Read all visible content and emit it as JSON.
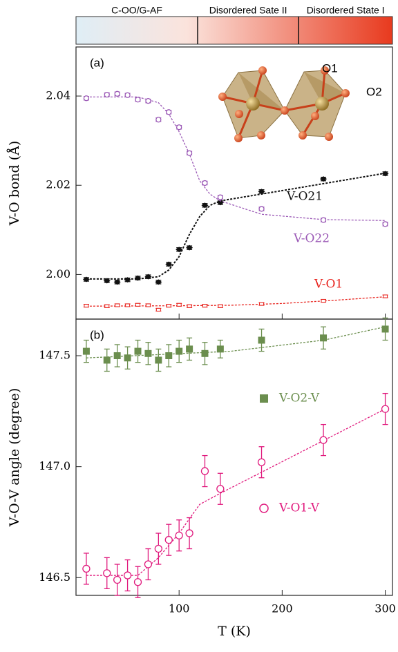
{
  "phase_bar": {
    "labels": [
      "C-OO/G-AF",
      "Disordered Sate II",
      "Disordered State I"
    ],
    "boundaries": [
      118,
      216
    ]
  },
  "inset": {
    "labels": [
      "O1",
      "O2"
    ]
  },
  "chart_data": [
    {
      "type": "scatter",
      "panel_label": "(a)",
      "y_label": "V-O bond (Å)",
      "xlim": [
        0,
        307
      ],
      "ylim": [
        1.99,
        2.051
      ],
      "xticks": [
        100,
        200,
        300
      ],
      "yticks": [
        {
          "value": 2,
          "label": "2.00"
        },
        2.02,
        2.04
      ],
      "series": [
        {
          "name": "V-O21",
          "color": "#111111",
          "marker": "diamond",
          "x": [
            10,
            30,
            40,
            50,
            60,
            70,
            80,
            90,
            100,
            110,
            125,
            140,
            180,
            240,
            300
          ],
          "values": [
            1.9989,
            1.9986,
            1.9983,
            1.9988,
            1.9992,
            1.9995,
            1.9983,
            2.0023,
            2.0056,
            2.006,
            2.0155,
            2.0161,
            2.0186,
            2.0214,
            2.0226
          ],
          "errors": [
            0.0004,
            0.0004,
            0.0004,
            0.0004,
            0.0004,
            0.0004,
            0.0004,
            0.0004,
            0.0004,
            0.0004,
            0.0004,
            0.0004,
            0.0004,
            0.0004,
            0.0004
          ],
          "fit": {
            "x": [
              10,
              60,
              80,
              90,
              100,
              110,
              120,
              130,
              140,
              200,
              300
            ],
            "values": [
              1.999,
              1.999,
              1.9995,
              2.001,
              2.004,
              2.009,
              2.013,
              2.0155,
              2.0165,
              2.0188,
              2.0227
            ]
          }
        },
        {
          "name": "V-O22",
          "color": "#9b59b6",
          "marker": "circle",
          "x": [
            10,
            30,
            40,
            50,
            60,
            70,
            80,
            90,
            100,
            110,
            125,
            140,
            180,
            240,
            300
          ],
          "values": [
            2.0395,
            2.0403,
            2.0405,
            2.0402,
            2.0392,
            2.0389,
            2.0347,
            2.0364,
            2.033,
            2.0272,
            2.0205,
            2.0173,
            2.0147,
            2.0122,
            2.0113
          ],
          "errors": [
            0.0004,
            0.0004,
            0.0004,
            0.0004,
            0.0004,
            0.0004,
            0.0004,
            0.0004,
            0.0004,
            0.0004,
            0.0004,
            0.0004,
            0.0004,
            0.0004,
            0.0004
          ],
          "fit": {
            "x": [
              10,
              60,
              80,
              90,
              100,
              110,
              120,
              130,
              140,
              180,
              240,
              300
            ],
            "values": [
              2.0398,
              2.0398,
              2.0385,
              2.036,
              2.032,
              2.027,
              2.021,
              2.018,
              2.0165,
              2.0135,
              2.0123,
              2.0121
            ]
          }
        },
        {
          "name": "V-O1",
          "color": "#e8251f",
          "marker": "square-open",
          "x": [
            10,
            30,
            40,
            50,
            60,
            70,
            80,
            90,
            100,
            110,
            125,
            140,
            180,
            240,
            300
          ],
          "values": [
            1.993,
            1.9929,
            1.9931,
            1.9931,
            1.9932,
            1.9931,
            1.9921,
            1.993,
            1.9932,
            1.9929,
            1.993,
            1.9929,
            1.9934,
            1.9941,
            1.9951
          ],
          "errors": [
            0.0003,
            0.0003,
            0.0003,
            0.0003,
            0.0003,
            0.0003,
            0.0003,
            0.0003,
            0.0003,
            0.0003,
            0.0003,
            0.0003,
            0.0003,
            0.0003,
            0.0003
          ],
          "fit": {
            "x": [
              10,
              100,
              150,
              200,
              250,
              300
            ],
            "values": [
              1.9929,
              1.993,
              1.9931,
              1.9935,
              1.9942,
              1.995
            ]
          }
        }
      ]
    },
    {
      "type": "scatter",
      "panel_label": "(b)",
      "y_label": "V-O-V angle (degree)",
      "x_label": "T (K)",
      "xlim": [
        0,
        307
      ],
      "ylim": [
        146.42,
        147.665
      ],
      "xticks": [
        100,
        200,
        300
      ],
      "yticks": [
        146.5,
        {
          "value": 147,
          "label": "147.0"
        },
        147.5
      ],
      "series": [
        {
          "name": "V-O2-V",
          "color": "#6b8e4e",
          "marker": "square",
          "x": [
            10,
            30,
            40,
            50,
            60,
            70,
            80,
            90,
            100,
            110,
            125,
            140,
            180,
            240,
            300
          ],
          "values": [
            147.52,
            147.48,
            147.5,
            147.49,
            147.52,
            147.51,
            147.48,
            147.5,
            147.52,
            147.53,
            147.51,
            147.53,
            147.57,
            147.58,
            147.62
          ],
          "errors": [
            0.05,
            0.05,
            0.05,
            0.05,
            0.05,
            0.05,
            0.05,
            0.05,
            0.05,
            0.05,
            0.05,
            0.04,
            0.05,
            0.05,
            0.05
          ],
          "fit": {
            "x": [
              10,
              150,
              240,
              300
            ],
            "values": [
              147.49,
              147.52,
              147.57,
              147.63
            ]
          }
        },
        {
          "name": "V-O1-V",
          "color": "#e0197d",
          "marker": "circle",
          "x": [
            10,
            30,
            40,
            50,
            60,
            70,
            80,
            90,
            100,
            110,
            125,
            140,
            180,
            240,
            300
          ],
          "values": [
            146.54,
            146.52,
            146.49,
            146.51,
            146.48,
            146.56,
            146.63,
            146.67,
            146.69,
            146.7,
            146.98,
            146.9,
            147.02,
            147.12,
            147.26
          ],
          "errors": [
            0.07,
            0.07,
            0.07,
            0.07,
            0.07,
            0.07,
            0.07,
            0.07,
            0.07,
            0.07,
            0.07,
            0.07,
            0.07,
            0.07,
            0.07
          ],
          "fit": {
            "x": [
              10,
              60,
              80,
              100,
              120,
              140,
              300
            ],
            "values": [
              146.51,
              146.51,
              146.59,
              146.7,
              146.83,
              146.88,
              147.26
            ]
          }
        }
      ]
    }
  ]
}
